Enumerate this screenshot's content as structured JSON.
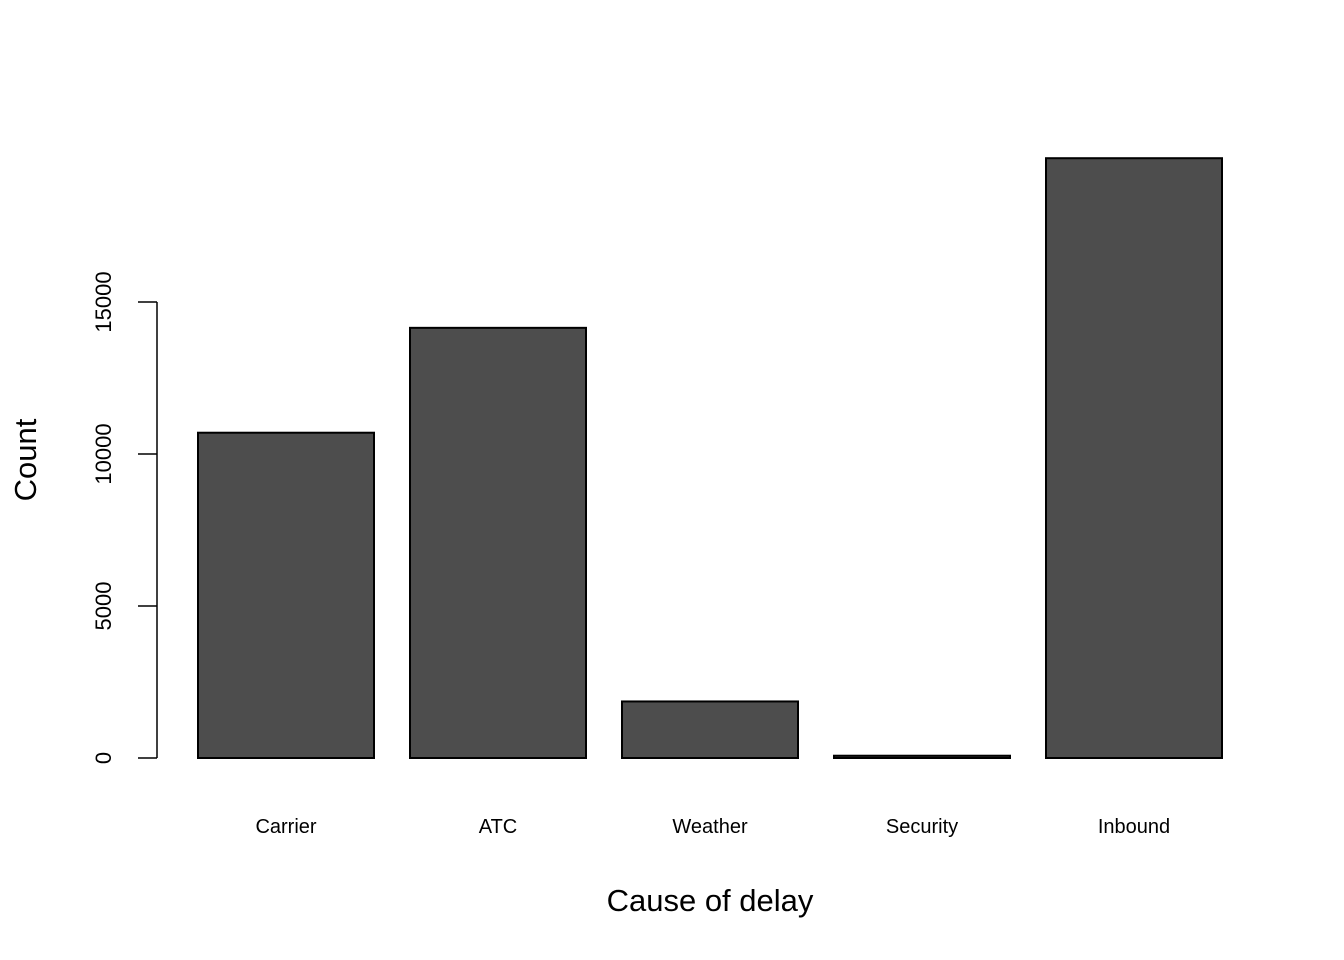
{
  "chart_data": {
    "type": "bar",
    "title": "",
    "xlabel": "Cause of delay",
    "ylabel": "Count",
    "categories": [
      "Carrier",
      "ATC",
      "Weather",
      "Security",
      "Inbound"
    ],
    "values": [
      10700,
      14150,
      1860,
      75,
      19730
    ],
    "yticks": [
      0,
      5000,
      10000,
      15000
    ],
    "ytick_labels": [
      "0",
      "5000",
      "10000",
      "15000"
    ],
    "ylim": [
      0,
      20800
    ],
    "bar_color": "#4d4d4d",
    "edge_color": "#000000",
    "grid": false,
    "legend": "none"
  }
}
